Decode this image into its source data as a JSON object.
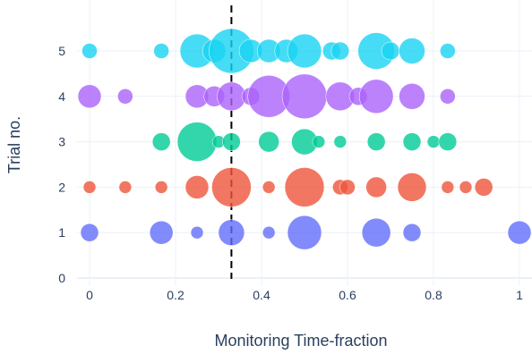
{
  "chart_data": {
    "type": "scatter",
    "xlabel": "Monitoring Time-fraction",
    "ylabel": "Trial no.",
    "xlim": [
      -0.03,
      1.03
    ],
    "ylim": [
      0,
      5.8
    ],
    "xticks": [
      0,
      0.2,
      0.4,
      0.6,
      0.8,
      1
    ],
    "xtick_labels": [
      "0",
      "0.2",
      "0.4",
      "0.6",
      "0.8",
      "1"
    ],
    "yticks": [
      0,
      1,
      2,
      3,
      4,
      5
    ],
    "ytick_labels": [
      "0",
      "1",
      "2",
      "3",
      "4",
      "5"
    ],
    "grid": true,
    "vertical_line": {
      "x": 0.33,
      "style": "dashed",
      "color": "#000000"
    },
    "series": [
      {
        "color": "#636efa",
        "y": 1,
        "points": [
          {
            "x": 0.0,
            "size": 2
          },
          {
            "x": 0.167,
            "size": 3
          },
          {
            "x": 0.25,
            "size": 1
          },
          {
            "x": 0.33,
            "size": 3.5
          },
          {
            "x": 0.417,
            "size": 1
          },
          {
            "x": 0.5,
            "size": 5
          },
          {
            "x": 0.667,
            "size": 4
          },
          {
            "x": 0.75,
            "size": 2
          },
          {
            "x": 1.0,
            "size": 3
          }
        ]
      },
      {
        "color": "#ef553b",
        "y": 2,
        "points": [
          {
            "x": 0.0,
            "size": 1
          },
          {
            "x": 0.083,
            "size": 1
          },
          {
            "x": 0.167,
            "size": 1
          },
          {
            "x": 0.25,
            "size": 3
          },
          {
            "x": 0.33,
            "size": 6
          },
          {
            "x": 0.417,
            "size": 1
          },
          {
            "x": 0.5,
            "size": 6
          },
          {
            "x": 0.583,
            "size": 1.5
          },
          {
            "x": 0.6,
            "size": 1.5
          },
          {
            "x": 0.667,
            "size": 2.5
          },
          {
            "x": 0.75,
            "size": 4
          },
          {
            "x": 0.833,
            "size": 1
          },
          {
            "x": 0.875,
            "size": 1
          },
          {
            "x": 0.917,
            "size": 2
          }
        ]
      },
      {
        "color": "#00cc96",
        "y": 3,
        "points": [
          {
            "x": 0.167,
            "size": 2
          },
          {
            "x": 0.25,
            "size": 6
          },
          {
            "x": 0.3,
            "size": 1
          },
          {
            "x": 0.33,
            "size": 2
          },
          {
            "x": 0.417,
            "size": 2.5
          },
          {
            "x": 0.5,
            "size": 3.5
          },
          {
            "x": 0.533,
            "size": 1
          },
          {
            "x": 0.583,
            "size": 1
          },
          {
            "x": 0.667,
            "size": 2
          },
          {
            "x": 0.75,
            "size": 2
          },
          {
            "x": 0.8,
            "size": 1
          },
          {
            "x": 0.833,
            "size": 2
          }
        ]
      },
      {
        "color": "#ab63fa",
        "y": 4,
        "points": [
          {
            "x": 0.0,
            "size": 3
          },
          {
            "x": 0.083,
            "size": 1.5
          },
          {
            "x": 0.25,
            "size": 3
          },
          {
            "x": 0.29,
            "size": 2.5
          },
          {
            "x": 0.33,
            "size": 4
          },
          {
            "x": 0.375,
            "size": 2
          },
          {
            "x": 0.417,
            "size": 6.5
          },
          {
            "x": 0.5,
            "size": 7
          },
          {
            "x": 0.583,
            "size": 4
          },
          {
            "x": 0.625,
            "size": 2
          },
          {
            "x": 0.667,
            "size": 5
          },
          {
            "x": 0.75,
            "size": 3.5
          },
          {
            "x": 0.833,
            "size": 1.5
          }
        ]
      },
      {
        "color": "#19d3f3",
        "y": 5,
        "points": [
          {
            "x": 0.0,
            "size": 1.5
          },
          {
            "x": 0.167,
            "size": 1.5
          },
          {
            "x": 0.25,
            "size": 5
          },
          {
            "x": 0.29,
            "size": 3
          },
          {
            "x": 0.33,
            "size": 7
          },
          {
            "x": 0.375,
            "size": 3
          },
          {
            "x": 0.417,
            "size": 3
          },
          {
            "x": 0.458,
            "size": 3
          },
          {
            "x": 0.5,
            "size": 5
          },
          {
            "x": 0.563,
            "size": 2
          },
          {
            "x": 0.583,
            "size": 2
          },
          {
            "x": 0.667,
            "size": 5.5
          },
          {
            "x": 0.7,
            "size": 2
          },
          {
            "x": 0.75,
            "size": 3.5
          },
          {
            "x": 0.833,
            "size": 1.5
          }
        ]
      }
    ]
  }
}
